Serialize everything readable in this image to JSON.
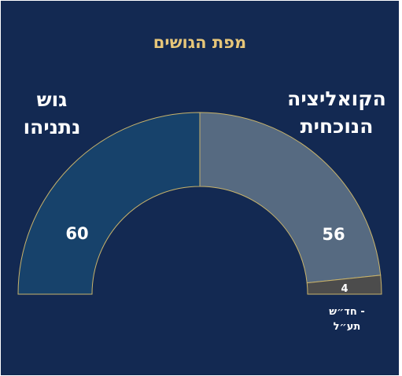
{
  "chart_data": {
    "type": "pie",
    "layout": "half-donut",
    "title": "מפת הגושים",
    "total": 120,
    "segments": [
      {
        "name": "גוש",
        "name_line2": "נתניהו",
        "value": 60,
        "color": "#17426b"
      },
      {
        "name": "הקואליציה",
        "name_line2": "הנוכחית",
        "value": 56,
        "color": "#566a81"
      },
      {
        "name": "חד״ש -",
        "name_line2": "תע״ל",
        "value": 4,
        "color": "#4c4c4c"
      }
    ],
    "colors": {
      "background": "#132952",
      "title": "#e7c679",
      "labels": "#ffffff",
      "segment_border": "#c9b36a"
    }
  }
}
